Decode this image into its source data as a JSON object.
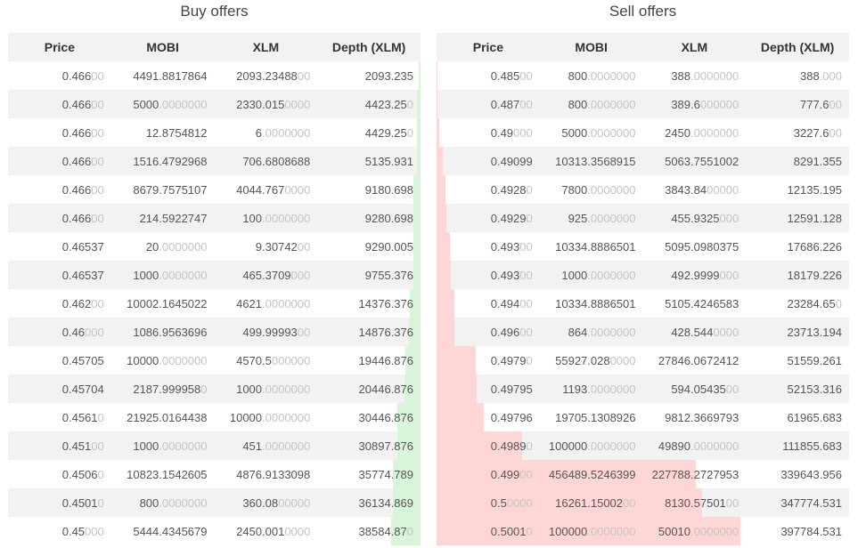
{
  "depth_scale_max": 540000,
  "colors": {
    "buy_bar": "#d9f5d9",
    "sell_bar": "#ffd6d6"
  },
  "columns": [
    "Price",
    "MOBI",
    "XLM",
    "Depth (XLM)"
  ],
  "buy": {
    "title": "Buy offers",
    "rows": [
      {
        "depth": 2093.235,
        "cells": [
          [
            "0.466",
            "00"
          ],
          [
            "4491.8817864",
            ""
          ],
          [
            "2093.23488",
            "00"
          ],
          [
            "2093.235",
            ""
          ]
        ]
      },
      {
        "depth": 4423.25,
        "cells": [
          [
            "0.466",
            "00"
          ],
          [
            "5000",
            ".0000000"
          ],
          [
            "2330.015",
            "0000"
          ],
          [
            "4423.25",
            "0"
          ]
        ]
      },
      {
        "depth": 4429.25,
        "cells": [
          [
            "0.466",
            "00"
          ],
          [
            "12.8754812",
            ""
          ],
          [
            "6",
            ".0000000"
          ],
          [
            "4429.25",
            "0"
          ]
        ]
      },
      {
        "depth": 5135.931,
        "cells": [
          [
            "0.466",
            "00"
          ],
          [
            "1516.4792968",
            ""
          ],
          [
            "706.6808688",
            ""
          ],
          [
            "5135.931",
            ""
          ]
        ]
      },
      {
        "depth": 9180.698,
        "cells": [
          [
            "0.466",
            "00"
          ],
          [
            "8679.7575107",
            ""
          ],
          [
            "4044.767",
            "0000"
          ],
          [
            "9180.698",
            ""
          ]
        ]
      },
      {
        "depth": 9280.698,
        "cells": [
          [
            "0.466",
            "00"
          ],
          [
            "214.5922747",
            ""
          ],
          [
            "100",
            ".0000000"
          ],
          [
            "9280.698",
            ""
          ]
        ]
      },
      {
        "depth": 9290.005,
        "cells": [
          [
            "0.46537",
            ""
          ],
          [
            "20",
            ".0000000"
          ],
          [
            "9.30742",
            "00"
          ],
          [
            "9290.005",
            ""
          ]
        ]
      },
      {
        "depth": 9755.376,
        "cells": [
          [
            "0.46537",
            ""
          ],
          [
            "1000",
            ".0000000"
          ],
          [
            "465.3709",
            "000"
          ],
          [
            "9755.376",
            ""
          ]
        ]
      },
      {
        "depth": 14376.376,
        "cells": [
          [
            "0.462",
            "00"
          ],
          [
            "10002.1645022",
            ""
          ],
          [
            "4621",
            ".0000000"
          ],
          [
            "14376.376",
            ""
          ]
        ]
      },
      {
        "depth": 14876.376,
        "cells": [
          [
            "0.46",
            "000"
          ],
          [
            "1086.9563696",
            ""
          ],
          [
            "499.99993",
            "00"
          ],
          [
            "14876.376",
            ""
          ]
        ]
      },
      {
        "depth": 19446.876,
        "cells": [
          [
            "0.45705",
            ""
          ],
          [
            "10000",
            ".0000000"
          ],
          [
            "4570.5",
            "000000"
          ],
          [
            "19446.876",
            ""
          ]
        ]
      },
      {
        "depth": 20446.876,
        "cells": [
          [
            "0.45704",
            ""
          ],
          [
            "2187.999958",
            "0"
          ],
          [
            "1000",
            ".0000000"
          ],
          [
            "20446.876",
            ""
          ]
        ]
      },
      {
        "depth": 30446.876,
        "cells": [
          [
            "0.4561",
            "0"
          ],
          [
            "21925.0164438",
            ""
          ],
          [
            "10000",
            ".0000000"
          ],
          [
            "30446.876",
            ""
          ]
        ]
      },
      {
        "depth": 30897.876,
        "cells": [
          [
            "0.451",
            "00"
          ],
          [
            "1000",
            ".0000000"
          ],
          [
            "451",
            ".0000000"
          ],
          [
            "30897.876",
            ""
          ]
        ]
      },
      {
        "depth": 35774.789,
        "cells": [
          [
            "0.4506",
            "0"
          ],
          [
            "10823.1542605",
            ""
          ],
          [
            "4876.9133098",
            ""
          ],
          [
            "35774.789",
            ""
          ]
        ]
      },
      {
        "depth": 36134.869,
        "cells": [
          [
            "0.4501",
            "0"
          ],
          [
            "800",
            ".0000000"
          ],
          [
            "360.08",
            "00000"
          ],
          [
            "36134.869",
            ""
          ]
        ]
      },
      {
        "depth": 38584.87,
        "cells": [
          [
            "0.45",
            "000"
          ],
          [
            "5444.4345679",
            ""
          ],
          [
            "2450.001",
            "0000"
          ],
          [
            "38584.87",
            "0"
          ]
        ]
      }
    ]
  },
  "sell": {
    "title": "Sell offers",
    "rows": [
      {
        "depth": 388,
        "cells": [
          [
            "0.485",
            "00"
          ],
          [
            "800",
            ".0000000"
          ],
          [
            "388",
            ".0000000"
          ],
          [
            "388",
            ".000"
          ]
        ]
      },
      {
        "depth": 777.6,
        "cells": [
          [
            "0.487",
            "00"
          ],
          [
            "800",
            ".0000000"
          ],
          [
            "389.6",
            "000000"
          ],
          [
            "777.6",
            "00"
          ]
        ]
      },
      {
        "depth": 3227.6,
        "cells": [
          [
            "0.49",
            "000"
          ],
          [
            "5000",
            ".0000000"
          ],
          [
            "2450",
            ".0000000"
          ],
          [
            "3227.6",
            "00"
          ]
        ]
      },
      {
        "depth": 8291.355,
        "cells": [
          [
            "0.49099",
            ""
          ],
          [
            "10313.3568915",
            ""
          ],
          [
            "5063.7551002",
            ""
          ],
          [
            "8291.355",
            ""
          ]
        ]
      },
      {
        "depth": 12135.195,
        "cells": [
          [
            "0.4928",
            "0"
          ],
          [
            "7800",
            ".0000000"
          ],
          [
            "3843.84",
            "00000"
          ],
          [
            "12135.195",
            ""
          ]
        ]
      },
      {
        "depth": 12591.128,
        "cells": [
          [
            "0.4929",
            "0"
          ],
          [
            "925",
            ".0000000"
          ],
          [
            "455.9325",
            "000"
          ],
          [
            "12591.128",
            ""
          ]
        ]
      },
      {
        "depth": 17686.226,
        "cells": [
          [
            "0.493",
            "00"
          ],
          [
            "10334.8886501",
            ""
          ],
          [
            "5095.0980375",
            ""
          ],
          [
            "17686.226",
            ""
          ]
        ]
      },
      {
        "depth": 18179.226,
        "cells": [
          [
            "0.493",
            "00"
          ],
          [
            "1000",
            ".0000000"
          ],
          [
            "492.9999",
            "000"
          ],
          [
            "18179.226",
            ""
          ]
        ]
      },
      {
        "depth": 23284.65,
        "cells": [
          [
            "0.494",
            "00"
          ],
          [
            "10334.8886501",
            ""
          ],
          [
            "5105.4246583",
            ""
          ],
          [
            "23284.65",
            "0"
          ]
        ]
      },
      {
        "depth": 23713.194,
        "cells": [
          [
            "0.496",
            "00"
          ],
          [
            "864",
            ".0000000"
          ],
          [
            "428.544",
            "0000"
          ],
          [
            "23713.194",
            ""
          ]
        ]
      },
      {
        "depth": 51559.261,
        "cells": [
          [
            "0.4979",
            "0"
          ],
          [
            "55927.028",
            "0000"
          ],
          [
            "27846.0672412",
            ""
          ],
          [
            "51559.261",
            ""
          ]
        ]
      },
      {
        "depth": 52153.316,
        "cells": [
          [
            "0.49795",
            ""
          ],
          [
            "1193",
            ".0000000"
          ],
          [
            "594.05435",
            "00"
          ],
          [
            "52153.316",
            ""
          ]
        ]
      },
      {
        "depth": 61965.683,
        "cells": [
          [
            "0.49796",
            ""
          ],
          [
            "19705.1308926",
            ""
          ],
          [
            "9812.3669793",
            ""
          ],
          [
            "61965.683",
            ""
          ]
        ]
      },
      {
        "depth": 111855.683,
        "cells": [
          [
            "0.4989",
            "0"
          ],
          [
            "100000",
            ".0000000"
          ],
          [
            "49890",
            ".0000000"
          ],
          [
            "111855.683",
            ""
          ]
        ]
      },
      {
        "depth": 339643.956,
        "cells": [
          [
            "0.499",
            "00"
          ],
          [
            "456489.5246399",
            ""
          ],
          [
            "227788.2727953",
            ""
          ],
          [
            "339643.956",
            ""
          ]
        ]
      },
      {
        "depth": 347774.531,
        "cells": [
          [
            "0.5",
            "0000"
          ],
          [
            "16261.15002",
            "00"
          ],
          [
            "8130.57501",
            "00"
          ],
          [
            "347774.531",
            ""
          ]
        ]
      },
      {
        "depth": 397784.531,
        "cells": [
          [
            "0.5001",
            "0"
          ],
          [
            "100000",
            ".0000000"
          ],
          [
            "50010",
            ".0000000"
          ],
          [
            "397784.531",
            ""
          ]
        ]
      }
    ]
  }
}
